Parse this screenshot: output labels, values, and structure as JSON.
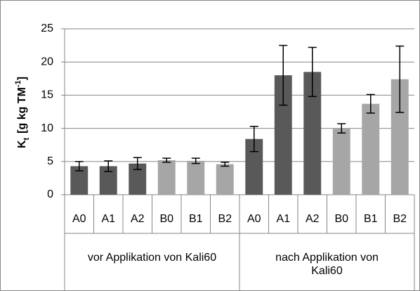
{
  "chart_data": {
    "type": "bar",
    "ylabel": {
      "main": "K",
      "sub": "t",
      "unit": "[g kg TM",
      "sup": "-1",
      "close": "]"
    },
    "categories": [
      "A0",
      "A1",
      "A2",
      "B0",
      "B1",
      "B2",
      "A0",
      "A1",
      "A2",
      "B0",
      "B1",
      "B2"
    ],
    "groups": [
      {
        "lines": [
          "vor Applikation von Kali60"
        ],
        "span": 6
      },
      {
        "lines": [
          "nach Applikation von",
          "Kali60"
        ],
        "span": 6
      }
    ],
    "values": [
      4.3,
      4.3,
      4.7,
      5.2,
      5.1,
      4.6,
      8.4,
      18.0,
      18.5,
      10.0,
      13.7,
      17.4
    ],
    "errors": [
      0.7,
      0.8,
      0.9,
      0.3,
      0.4,
      0.3,
      1.9,
      4.5,
      3.7,
      0.7,
      1.4,
      5.0
    ],
    "colors": [
      "#595959",
      "#595959",
      "#595959",
      "#a6a6a6",
      "#a6a6a6",
      "#a6a6a6",
      "#595959",
      "#595959",
      "#595959",
      "#a6a6a6",
      "#a6a6a6",
      "#a6a6a6"
    ],
    "ylim": [
      0,
      25
    ],
    "yticks": [
      0,
      5,
      10,
      15,
      20,
      25
    ],
    "grid": true
  }
}
